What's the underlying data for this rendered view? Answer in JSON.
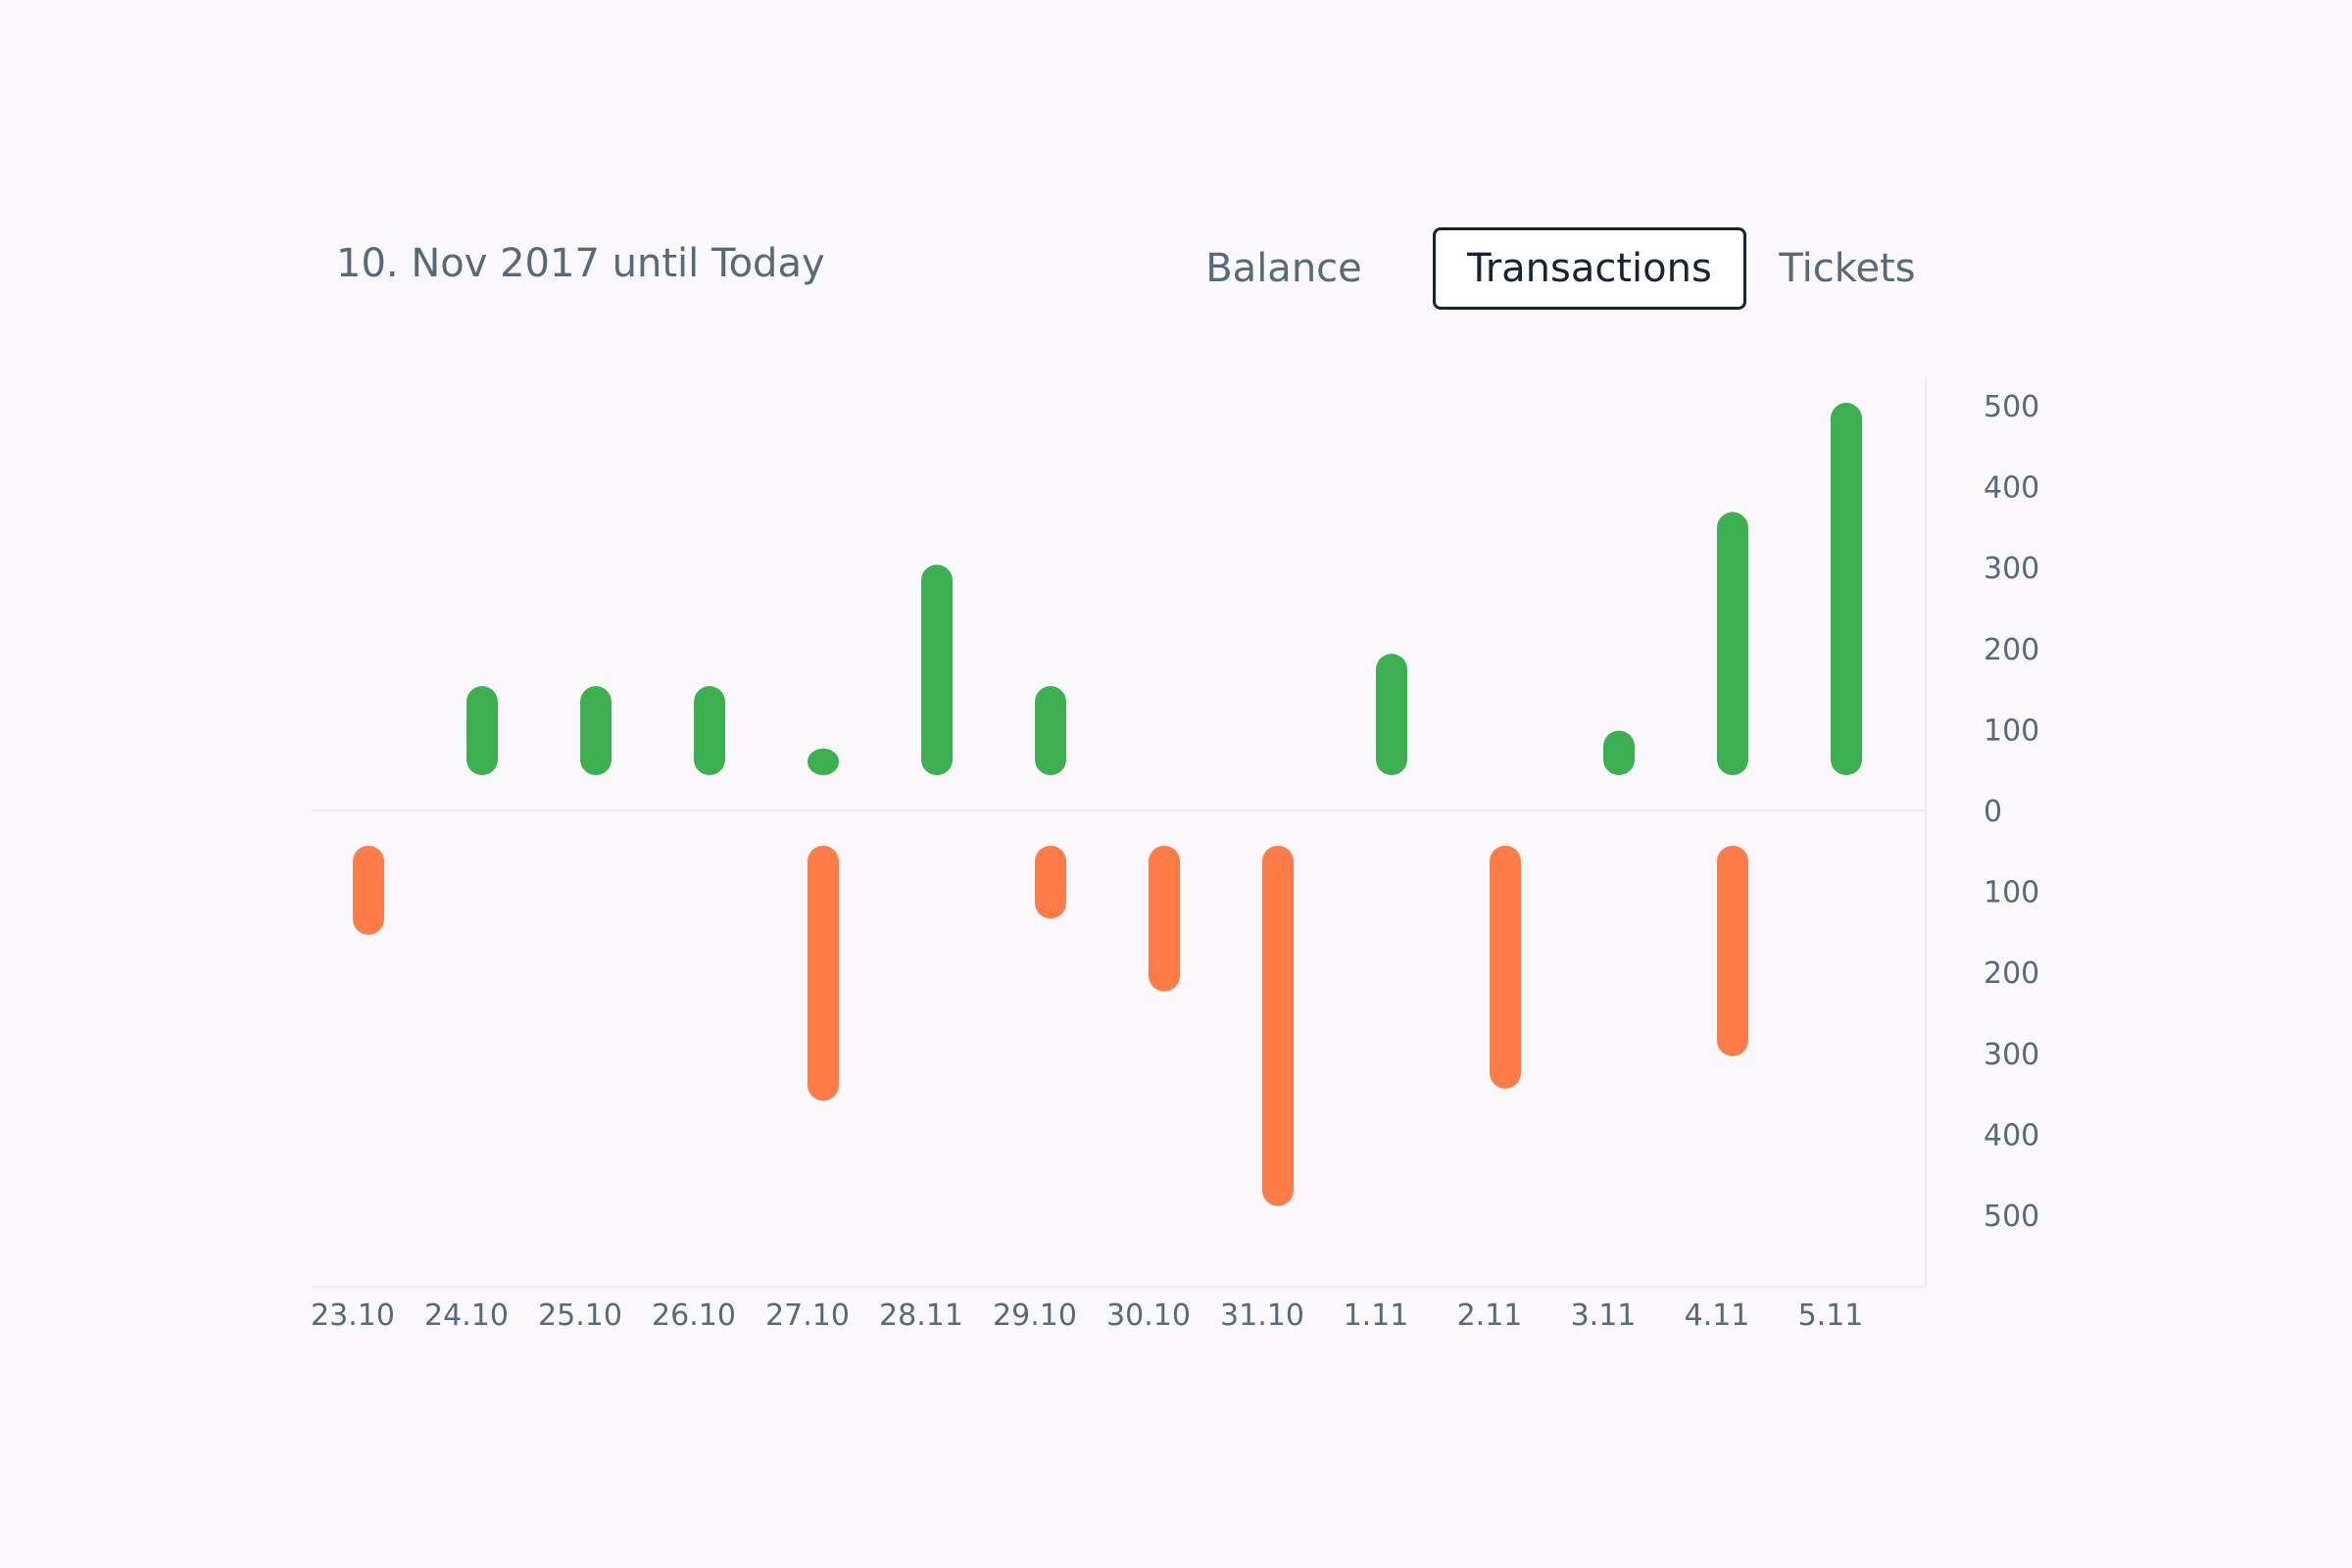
{
  "header": {
    "date_range": "10. Nov 2017 until Today"
  },
  "tabs": [
    {
      "label": "Balance",
      "active": false
    },
    {
      "label": "Transactions",
      "active": true
    },
    {
      "label": "Tickets",
      "active": false
    }
  ],
  "colors": {
    "positive": "#3caf50",
    "negative": "#ff7b48",
    "text": "#566a7b",
    "active_border": "#16233a"
  },
  "chart_data": {
    "type": "bar",
    "title": "",
    "xlabel": "",
    "ylabel": "",
    "categories": [
      "23.10",
      "24.10",
      "25.10",
      "26.10",
      "27.10",
      "28.11",
      "29.10",
      "30.10",
      "31.10",
      "1.11",
      "2.11",
      "3.11",
      "4.11",
      "5.11"
    ],
    "series": [
      {
        "values": [
          0,
          110,
          110,
          110,
          15,
          260,
          110,
          0,
          0,
          150,
          0,
          55,
          325,
          460
        ]
      },
      {
        "values": [
          110,
          0,
          0,
          0,
          315,
          0,
          90,
          180,
          445,
          0,
          300,
          0,
          260,
          0
        ]
      }
    ],
    "y_ticks_up": [
      "500",
      "400",
      "300",
      "200",
      "100"
    ],
    "y_tick_zero": "0",
    "y_ticks_down": [
      "100",
      "200",
      "300",
      "400",
      "500"
    ],
    "ylim": [
      -500,
      500
    ],
    "grid": false,
    "legend": "none"
  }
}
